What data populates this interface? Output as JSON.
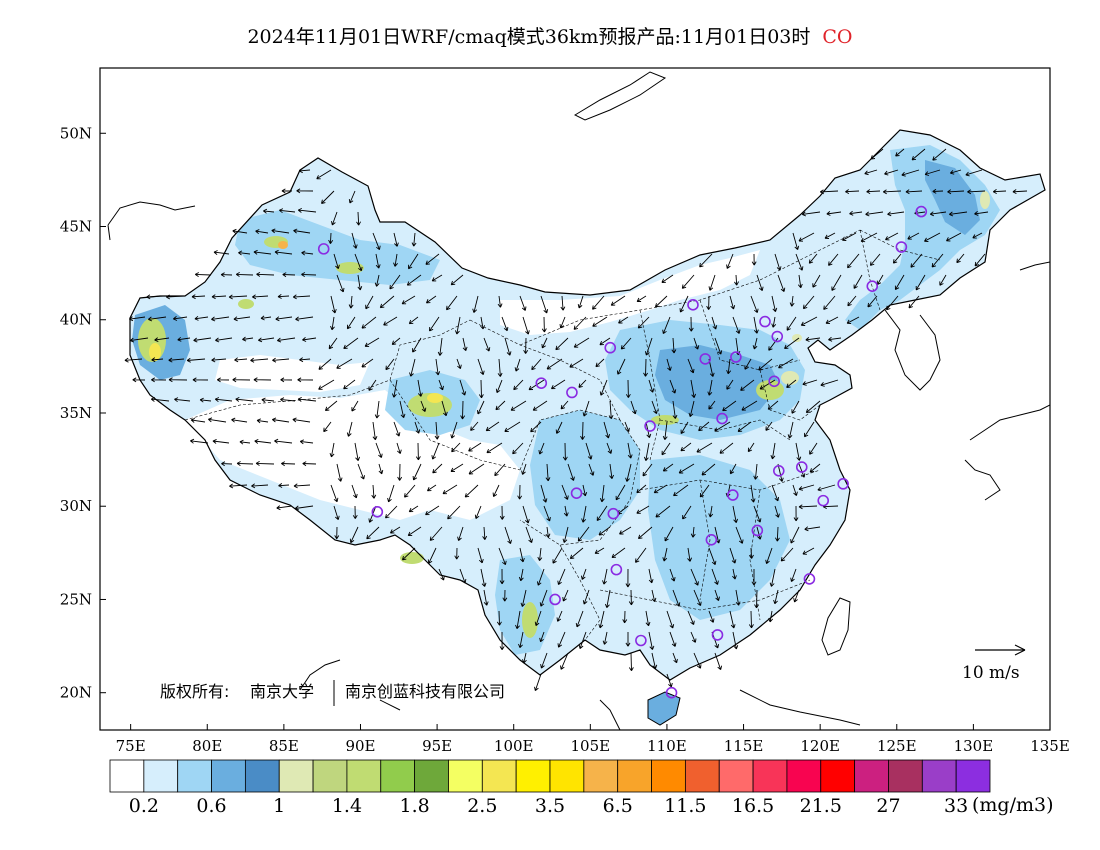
{
  "title": {
    "main": "2024年11月01日WRF/cmaq模式36km预报产品:11月01日03时",
    "species": "CO",
    "species_color": "#e0232a"
  },
  "axes": {
    "lon_ticks": [
      "75E",
      "80E",
      "85E",
      "90E",
      "95E",
      "100E",
      "105E",
      "110E",
      "115E",
      "120E",
      "125E",
      "130E",
      "135E"
    ],
    "lat_ticks": [
      "20N",
      "25N",
      "30N",
      "35N",
      "40N",
      "45N",
      "50N"
    ],
    "lon_range": [
      73,
      135
    ],
    "lat_range": [
      18,
      53.5
    ]
  },
  "legend": {
    "colors": [
      "#ffffff",
      "#d6eefc",
      "#9fd6f4",
      "#6aaedf",
      "#4a8cc6",
      "#dfe9b4",
      "#bfd67e",
      "#c0dc72",
      "#91cc4c",
      "#6ea83a",
      "#f4ff62",
      "#f4e652",
      "#fff000",
      "#ffe400",
      "#f6b34a",
      "#f8a42a",
      "#ff8a00",
      "#f0602e",
      "#ff6a6a",
      "#f83458",
      "#f80450",
      "#ff0000",
      "#cc2080",
      "#a83060",
      "#9a3ec8",
      "#8c2ee0"
    ],
    "labels": [
      "0.2",
      "0.6",
      "1",
      "1.4",
      "1.8",
      "2.5",
      "3.5",
      "6.5",
      "11.5",
      "16.5",
      "21.5",
      "27",
      "33"
    ],
    "unit": "(mg/m3)"
  },
  "wind_reference": {
    "label": "10 m/s"
  },
  "credit": {
    "owner_label": "版权所有:",
    "owner_1": "南京大学",
    "owner_2": "南京创蓝科技有限公司"
  },
  "station_color": "#8a2be2",
  "stations": [
    {
      "lon": 126.6,
      "lat": 45.8
    },
    {
      "lon": 125.3,
      "lat": 43.9
    },
    {
      "lon": 123.4,
      "lat": 41.8
    },
    {
      "lon": 87.6,
      "lat": 43.8
    },
    {
      "lon": 111.7,
      "lat": 40.8
    },
    {
      "lon": 116.4,
      "lat": 39.9
    },
    {
      "lon": 117.2,
      "lat": 39.1
    },
    {
      "lon": 106.3,
      "lat": 38.5
    },
    {
      "lon": 112.5,
      "lat": 37.9
    },
    {
      "lon": 114.5,
      "lat": 38.0
    },
    {
      "lon": 101.8,
      "lat": 36.6
    },
    {
      "lon": 103.8,
      "lat": 36.1
    },
    {
      "lon": 117.0,
      "lat": 36.7
    },
    {
      "lon": 108.9,
      "lat": 34.3
    },
    {
      "lon": 113.6,
      "lat": 34.7
    },
    {
      "lon": 117.3,
      "lat": 31.9
    },
    {
      "lon": 118.8,
      "lat": 32.1
    },
    {
      "lon": 121.5,
      "lat": 31.2
    },
    {
      "lon": 120.2,
      "lat": 30.3
    },
    {
      "lon": 114.3,
      "lat": 30.6
    },
    {
      "lon": 104.1,
      "lat": 30.7
    },
    {
      "lon": 106.5,
      "lat": 29.6
    },
    {
      "lon": 91.1,
      "lat": 29.7
    },
    {
      "lon": 112.9,
      "lat": 28.2
    },
    {
      "lon": 115.9,
      "lat": 28.7
    },
    {
      "lon": 106.7,
      "lat": 26.6
    },
    {
      "lon": 119.3,
      "lat": 26.1
    },
    {
      "lon": 102.7,
      "lat": 25.0
    },
    {
      "lon": 113.3,
      "lat": 23.1
    },
    {
      "lon": 108.3,
      "lat": 22.8
    },
    {
      "lon": 110.3,
      "lat": 20.0
    }
  ]
}
